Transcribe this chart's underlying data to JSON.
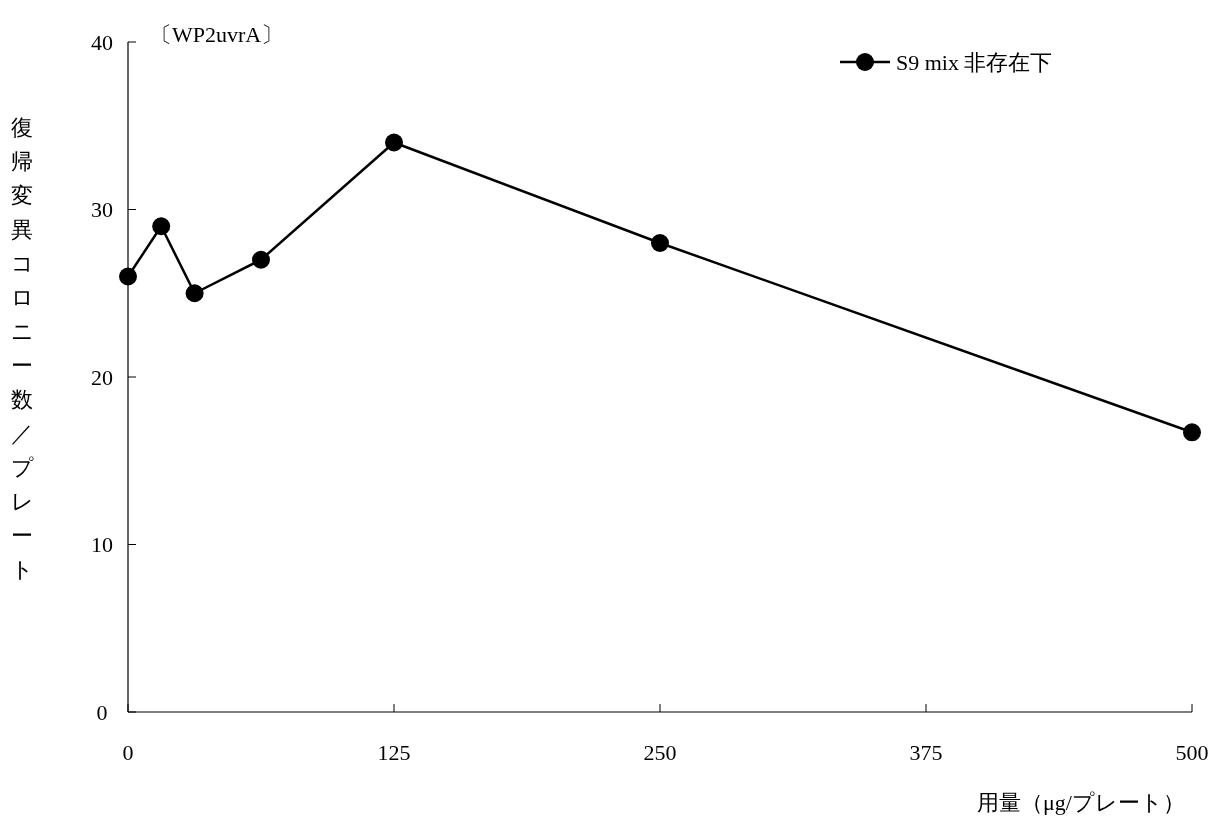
{
  "chart_data": {
    "type": "line",
    "title": "〔WP2uvrA〕",
    "xlabel": "用量（μg/プレート）",
    "ylabel": "復帰変異コロニー数／プレート",
    "x": [
      0,
      15.6,
      31.3,
      62.5,
      125,
      250,
      500
    ],
    "series": [
      {
        "name": "S9 mix 非存在下",
        "color": "#000000",
        "values": [
          26,
          29,
          25,
          27,
          34,
          28,
          16.7
        ]
      }
    ],
    "xlim": [
      0,
      500
    ],
    "xticks": [
      0,
      125,
      250,
      375,
      500
    ],
    "ylim": [
      0,
      40
    ],
    "yticks": [
      0,
      10,
      20,
      30,
      40
    ],
    "grid": false,
    "legend": "top right",
    "marker": "circle",
    "line_style": "solid"
  }
}
